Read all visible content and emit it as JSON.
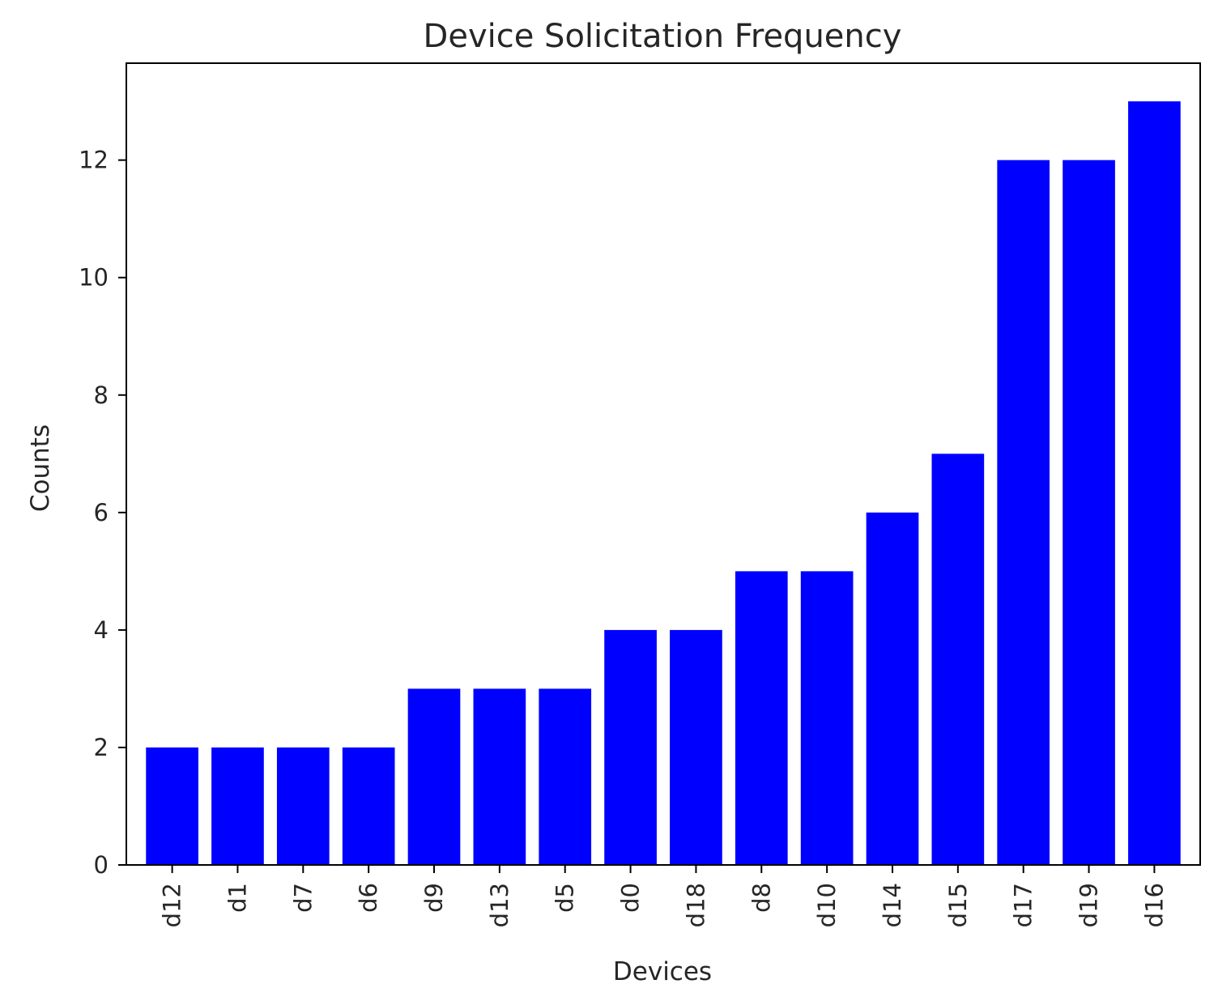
{
  "chart_data": {
    "type": "bar",
    "title": "Device Solicitation Frequency",
    "xlabel": "Devices",
    "ylabel": "Counts",
    "categories": [
      "d12",
      "d1",
      "d7",
      "d6",
      "d9",
      "d13",
      "d5",
      "d0",
      "d18",
      "d8",
      "d10",
      "d14",
      "d15",
      "d17",
      "d19",
      "d16"
    ],
    "values": [
      2,
      2,
      2,
      2,
      3,
      3,
      3,
      4,
      4,
      5,
      5,
      6,
      7,
      12,
      12,
      13
    ],
    "ylim": [
      0,
      13.65
    ],
    "yticks": [
      0,
      2,
      4,
      6,
      8,
      10,
      12
    ],
    "bar_color": "#0000ff",
    "grid": false,
    "legend": "none"
  }
}
